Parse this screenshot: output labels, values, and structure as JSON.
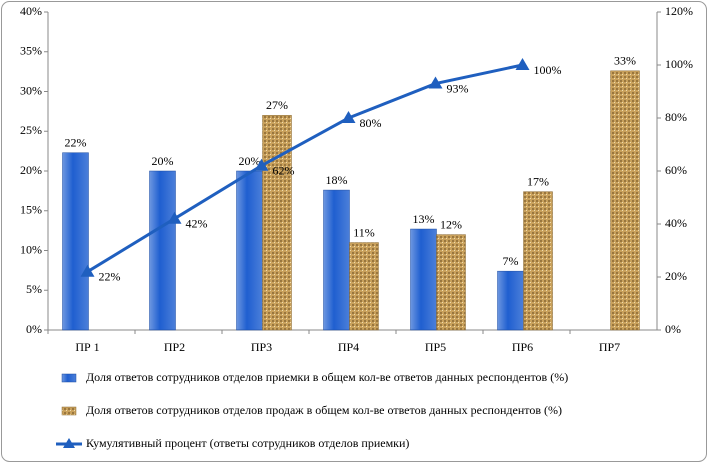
{
  "chart_data": {
    "type": "bar",
    "categories": [
      "ПР 1",
      "ПР2",
      "ПР3",
      "ПР4",
      "ПР5",
      "ПР6",
      "ПР7"
    ],
    "series": [
      {
        "name": "Доля ответов сотрудников отделов приемки в общем кол-ве ответов данных респондентов (%)",
        "color": "#1f5fd0",
        "type": "bar",
        "values": [
          22.3,
          20,
          20,
          17.6,
          12.7,
          7.4,
          null
        ],
        "value_labels": [
          "22%",
          "20%",
          "20%",
          "18%",
          "13%",
          "7%",
          null
        ]
      },
      {
        "name": "Доля ответов сотрудников отделов продаж в общем кол-ве ответов данных респондентов (%)",
        "color": "#c9a15c",
        "type": "bar",
        "values": [
          null,
          null,
          27,
          11,
          12,
          17.4,
          32.6
        ],
        "value_labels": [
          null,
          null,
          "27%",
          "11%",
          "12%",
          "17%",
          "33%"
        ]
      },
      {
        "name": "Кумулятивный процент (ответы сотрудников отделов приемки)",
        "color": "#1f5fbf",
        "type": "line",
        "axis": "y2",
        "values": [
          22,
          42,
          62,
          80,
          93,
          100,
          null
        ],
        "value_labels": [
          "22%",
          "42%",
          "62%",
          "80%",
          "93%",
          "100%",
          null
        ]
      }
    ],
    "ylim": [
      0,
      40
    ],
    "yticks": [
      {
        "value": 0,
        "label": "0%"
      },
      {
        "value": 5,
        "label": "5%"
      },
      {
        "value": 10,
        "label": "10%"
      },
      {
        "value": 15,
        "label": "15%"
      },
      {
        "value": 20,
        "label": "20%"
      },
      {
        "value": 25,
        "label": "25%"
      },
      {
        "value": 30,
        "label": "30%"
      },
      {
        "value": 35,
        "label": "35%"
      },
      {
        "value": 40,
        "label": "40%"
      }
    ],
    "y2lim": [
      0,
      120
    ],
    "y2ticks": [
      {
        "value": 0,
        "label": "0%"
      },
      {
        "value": 20,
        "label": "20%"
      },
      {
        "value": 40,
        "label": "40%"
      },
      {
        "value": 60,
        "label": "60%"
      },
      {
        "value": 80,
        "label": "80%"
      },
      {
        "value": 100,
        "label": "100%"
      },
      {
        "value": 120,
        "label": "120%"
      }
    ],
    "grid": false
  }
}
